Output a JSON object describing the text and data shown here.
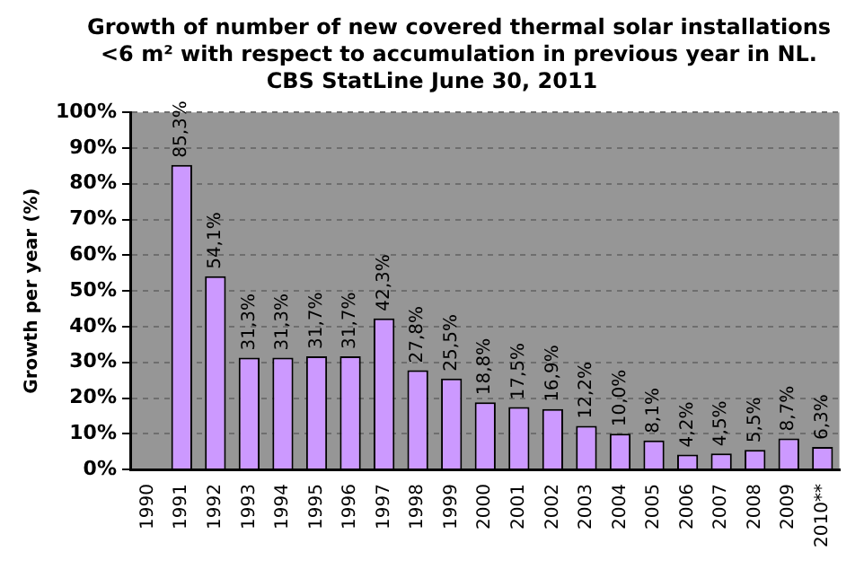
{
  "chart_data": {
    "type": "bar",
    "title": "Growth of number of new covered thermal solar installations <6 m² with respect to accumulation in previous year in NL.",
    "subtitle": "CBS StatLine June 30, 2011",
    "ylabel": "Growth per year (%)",
    "categories": [
      "1990",
      "1991",
      "1992",
      "1993",
      "1994",
      "1995",
      "1996",
      "1997",
      "1998",
      "1999",
      "2000",
      "2001",
      "2002",
      "2003",
      "2004",
      "2005",
      "2006",
      "2007",
      "2008",
      "2009",
      "2010**"
    ],
    "values": [
      null,
      85.3,
      54.1,
      31.3,
      31.3,
      31.7,
      31.7,
      42.3,
      27.8,
      25.5,
      18.8,
      17.5,
      16.9,
      12.2,
      10.0,
      8.1,
      4.2,
      4.5,
      5.5,
      8.7,
      6.3
    ],
    "value_labels": [
      null,
      "85,3%",
      "54,1%",
      "31,3%",
      "31,3%",
      "31,7%",
      "31,7%",
      "42,3%",
      "27,8%",
      "25,5%",
      "18,8%",
      "17,5%",
      "16,9%",
      "12,2%",
      "10,0%",
      "8,1%",
      "4,2%",
      "4,5%",
      "5,5%",
      "8,7%",
      "6,3%"
    ],
    "color": "#cc99ff",
    "ylim": [
      0,
      100
    ],
    "yticks": [
      {
        "value": 0,
        "label": "0%"
      },
      {
        "value": 10,
        "label": "10%"
      },
      {
        "value": 20,
        "label": "20%"
      },
      {
        "value": 30,
        "label": "30%"
      },
      {
        "value": 40,
        "label": "40%"
      },
      {
        "value": 50,
        "label": "50%"
      },
      {
        "value": 60,
        "label": "60%"
      },
      {
        "value": 70,
        "label": "70%"
      },
      {
        "value": 80,
        "label": "80%"
      },
      {
        "value": 90,
        "label": "90%"
      },
      {
        "value": 100,
        "label": "100%"
      }
    ],
    "grid": "y",
    "legend": false
  }
}
